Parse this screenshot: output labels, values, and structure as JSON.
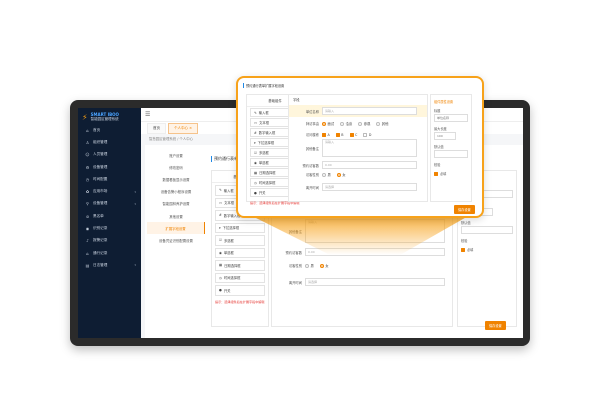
{
  "brand": {
    "name_en": "SMART IBOO",
    "name_cn": "智能园区管理系统"
  },
  "sidebar": {
    "items": [
      {
        "label": "首页",
        "icon": "home-icon",
        "chevron": false
      },
      {
        "label": "组织管理",
        "icon": "org-icon",
        "chevron": false
      },
      {
        "label": "人员管理",
        "icon": "user-icon",
        "chevron": false
      },
      {
        "label": "设备管理",
        "icon": "gear-icon",
        "chevron": false
      },
      {
        "label": "时间配置",
        "icon": "clock-icon",
        "chevron": false
      },
      {
        "label": "应用市场",
        "icon": "app-icon",
        "chevron": true
      },
      {
        "label": "设备管理",
        "icon": "device-icon",
        "chevron": true
      },
      {
        "label": "黑名单",
        "icon": "block-icon",
        "chevron": false
      },
      {
        "label": "识别记录",
        "icon": "eye-icon",
        "chevron": false
      },
      {
        "label": "报警记录",
        "icon": "bell-icon",
        "chevron": false
      },
      {
        "label": "通行记录",
        "icon": "door-icon",
        "chevron": false
      },
      {
        "label": "日志管理",
        "icon": "log-icon",
        "chevron": true
      }
    ]
  },
  "header": {
    "menu_icon": "menu-icon"
  },
  "tabs": [
    {
      "label": "首页"
    },
    {
      "label": "个人中心 ×"
    }
  ],
  "breadcrumb": "智慧园区管理系统 / 个人中心",
  "settings_menu": [
    "账户设置",
    "修改密码",
    "数据看板显示设置",
    "设备告警小程序设置",
    "智能园林养护设置",
    "其他设置",
    "扩展字段设置",
    "设备凭证识别配置设置"
  ],
  "active_menu": "扩展字段设置",
  "section_title": "预约通行表单扩展字段设置",
  "components": {
    "header": "基础组件",
    "items": [
      "输入框",
      "文本框",
      "数字输入框",
      "下拉选择框",
      "多选框",
      "单选框",
      "日期选择框",
      "时间选择框",
      "开关"
    ],
    "hint": "提示：选择组件后在扩展字段中编辑"
  },
  "form": {
    "top_label": "字段",
    "unit": {
      "label": "单位名称",
      "placeholder": "请输入"
    },
    "reason": {
      "label": "拜访事由",
      "options": [
        "面试",
        "洽谈",
        "参观",
        "其他"
      ],
      "selected": "面试"
    },
    "building": {
      "label": "访问楼栋",
      "options": [
        "A",
        "B",
        "C",
        "D"
      ],
      "checked": [
        "A",
        "B",
        "C"
      ]
    },
    "remark": {
      "label": "其他备注",
      "placeholder": "请输入"
    },
    "count": {
      "label": "预约访客数",
      "value": "0.00"
    },
    "gender": {
      "label": "访客性别",
      "options": [
        "男",
        "女"
      ],
      "selected": "女"
    },
    "leave": {
      "label": "离开时间",
      "placeholder": "请选择"
    }
  },
  "props": {
    "tab": "组件属性设置",
    "title_label": "标题",
    "title_value": "单位名称",
    "max_label": "最大长度",
    "max_value": "100",
    "default_label": "默认值",
    "default_value": "",
    "check_label": "校验",
    "required_label": "必填",
    "required": true
  },
  "save_button": "保存设置",
  "colors": {
    "accent": "#f08300",
    "sidebar": "#0e1d33",
    "popup_border": "#f7a21a"
  }
}
